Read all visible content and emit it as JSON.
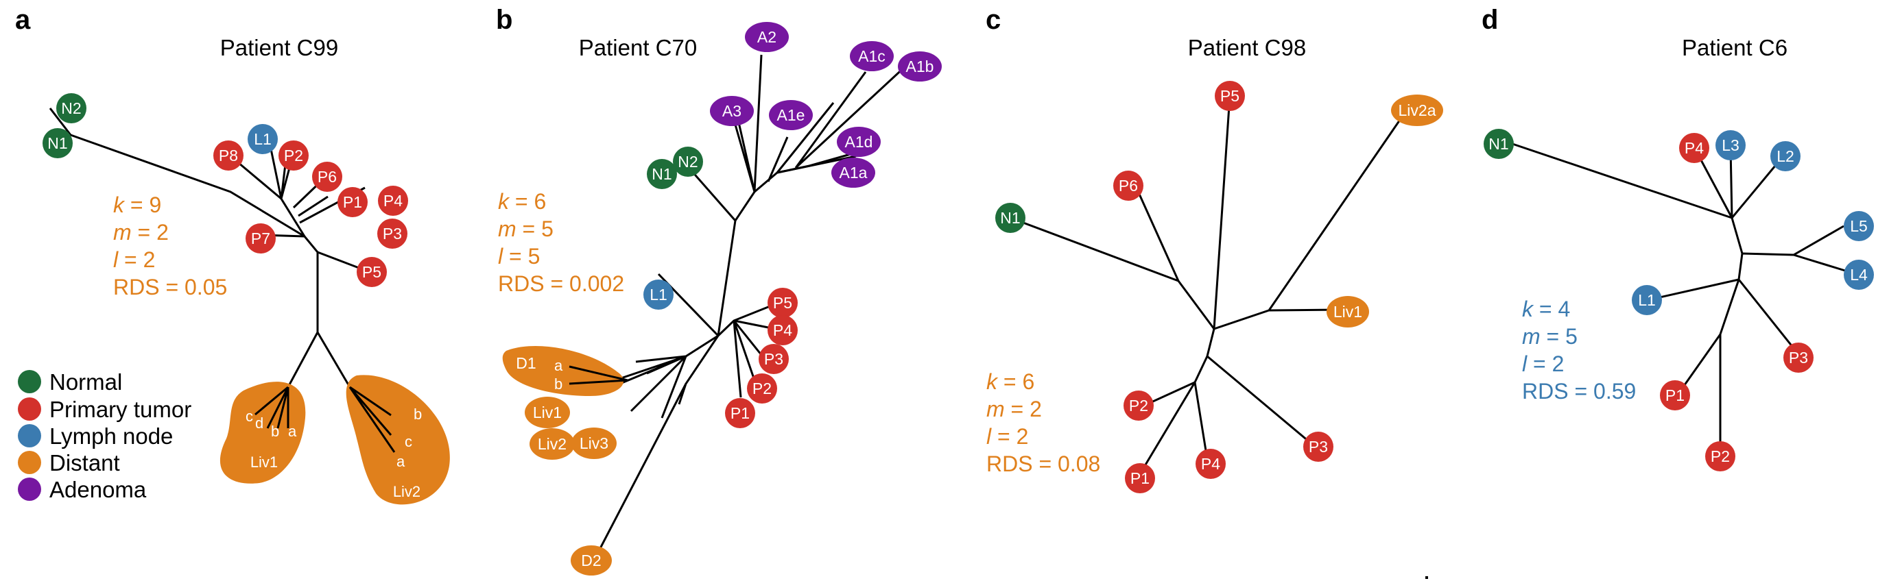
{
  "colors": {
    "normal": "#1e6e3a",
    "primary_tumor": "#d3312b",
    "lymph_node": "#3b7bb0",
    "distant": "#e0801c",
    "adenoma": "#7617a0",
    "stat_orange": "#e0801c",
    "stat_blue": "#3b7bb0"
  },
  "legend": [
    {
      "label": "Normal",
      "color_key": "normal"
    },
    {
      "label": "Primary tumor",
      "color_key": "primary_tumor"
    },
    {
      "label": "Lymph node",
      "color_key": "lymph_node"
    },
    {
      "label": "Distant",
      "color_key": "distant"
    },
    {
      "label": "Adenoma",
      "color_key": "adenoma"
    }
  ],
  "panels": [
    {
      "letter": "a",
      "title": "Patient C99",
      "stats": {
        "k": "= 9",
        "m": "= 2",
        "l": "= 2",
        "rds": "RDS = 0.05"
      },
      "stat_color_key": "stat_orange",
      "nodes": [
        "N1",
        "N2",
        "L1",
        "P8",
        "P2",
        "P6",
        "P1",
        "P4",
        "P3",
        "P7",
        "P5"
      ],
      "groups": [
        {
          "name": "Liv1",
          "leaves": [
            "c",
            "d",
            "b",
            "a"
          ]
        },
        {
          "name": "Liv2",
          "leaves": [
            "b",
            "c",
            "a"
          ]
        }
      ]
    },
    {
      "letter": "b",
      "title": "Patient C70",
      "stats": {
        "k": "= 6",
        "m": "= 5",
        "l": "= 5",
        "rds": "RDS = 0.002"
      },
      "stat_color_key": "stat_orange",
      "nodes": [
        "A2",
        "A1c",
        "A1b",
        "A3",
        "A1e",
        "A1d",
        "A1a",
        "N1",
        "N2",
        "L1",
        "P5",
        "P4",
        "P3",
        "P2",
        "P1",
        "Liv1",
        "Liv2",
        "Liv3",
        "D2"
      ],
      "groups": [
        {
          "name": "D1",
          "leaves": [
            "a",
            "b"
          ]
        }
      ]
    },
    {
      "letter": "c",
      "title": "Patient C98",
      "stats": {
        "k": "= 6",
        "m": "= 2",
        "l": "= 2",
        "rds": "RDS = 0.08"
      },
      "stat_color_key": "stat_orange",
      "nodes": [
        "P5",
        "Liv2a",
        "P6",
        "N1",
        "Liv1",
        "P2",
        "P1",
        "P4",
        "P3"
      ],
      "groups": []
    },
    {
      "letter": "d",
      "title": "Patient C6",
      "stats": {
        "k": "= 4",
        "m": "= 5",
        "l": "= 2",
        "rds": "RDS = 0.59"
      },
      "stat_color_key": "stat_blue",
      "nodes": [
        "N1",
        "P4",
        "L3",
        "L2",
        "L5",
        "L4",
        "L1",
        "P3",
        "P1",
        "P2"
      ],
      "groups": []
    }
  ]
}
